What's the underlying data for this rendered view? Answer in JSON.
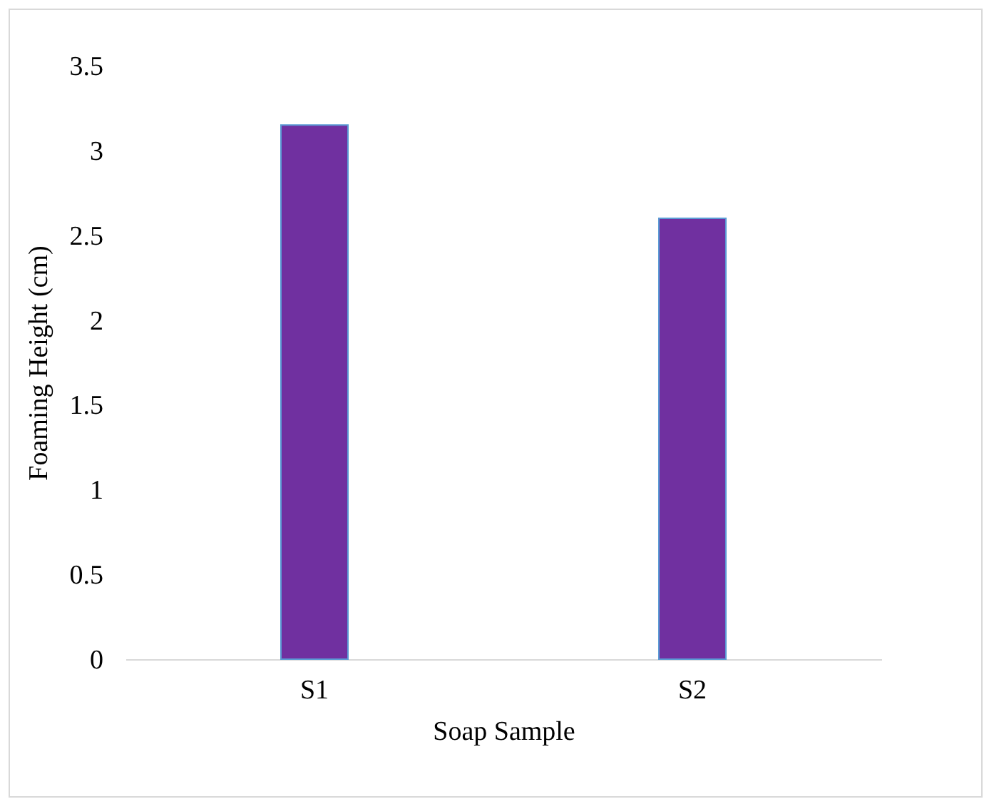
{
  "chart_data": {
    "type": "bar",
    "xlabel": "Soap Sample",
    "ylabel": "Foaming Height (cm)",
    "categories": [
      "S1",
      "S2"
    ],
    "values": [
      3.15,
      2.6
    ],
    "color": "#7030a0",
    "ylim": [
      0,
      3.5
    ],
    "yticks": [
      0,
      0.5,
      1,
      1.5,
      2,
      2.5,
      3,
      3.5
    ],
    "grid": false
  }
}
